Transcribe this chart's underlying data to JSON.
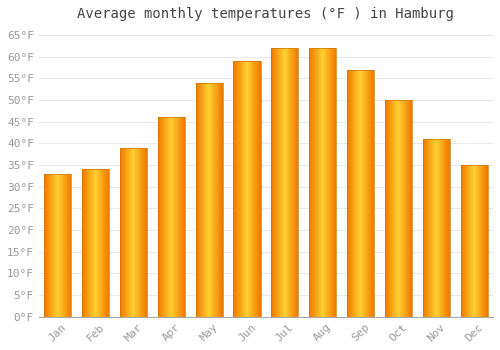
{
  "title": "Average monthly temperatures (°F ) in Hamburg",
  "months": [
    "Jan",
    "Feb",
    "Mar",
    "Apr",
    "May",
    "Jun",
    "Jul",
    "Aug",
    "Sep",
    "Oct",
    "Nov",
    "Dec"
  ],
  "values": [
    33,
    34,
    39,
    46,
    54,
    59,
    62,
    62,
    57,
    50,
    41,
    35
  ],
  "bar_color_center": "#FFB700",
  "bar_color_edge": "#F07800",
  "ylim": [
    0,
    67
  ],
  "yticks": [
    0,
    5,
    10,
    15,
    20,
    25,
    30,
    35,
    40,
    45,
    50,
    55,
    60,
    65
  ],
  "ylabel_suffix": "°F",
  "background_color": "#ffffff",
  "grid_color": "#e8e8e8",
  "title_fontsize": 10,
  "tick_fontsize": 8,
  "font_family": "monospace",
  "bar_width": 0.72
}
